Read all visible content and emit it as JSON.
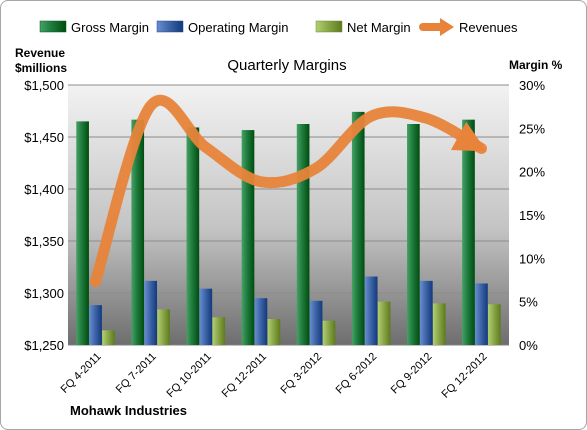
{
  "chart_data": {
    "type": "bar",
    "title": "Quarterly Margins",
    "footer": "Mohawk Industries",
    "left_axis_title": [
      "Revenue",
      "$millions"
    ],
    "right_axis_title": "Margin %",
    "categories": [
      "FQ 4-2011",
      "FQ 7-2011",
      "FQ 10-2011",
      "FQ 12-2011",
      "FQ 3-2012",
      "FQ 6-2012",
      "FQ 9-2012",
      "FQ 12-2012"
    ],
    "left_axis": {
      "min": 1250,
      "max": 1500,
      "ticks": [
        1250,
        1300,
        1350,
        1400,
        1450,
        1500
      ],
      "tick_labels": [
        "$1,250",
        "$1,300",
        "$1,350",
        "$1,400",
        "$1,450",
        "$1,500"
      ]
    },
    "right_axis": {
      "min": 0,
      "max": 30,
      "ticks": [
        0,
        5,
        10,
        15,
        20,
        25,
        30
      ],
      "tick_labels": [
        "0%",
        "5%",
        "10%",
        "15%",
        "20%",
        "25%",
        "30%"
      ]
    },
    "series": [
      {
        "name": "Gross Margin",
        "kind": "bar",
        "axis": "right",
        "color": "#1e7a3c",
        "values": [
          25.8,
          26.0,
          25.1,
          24.8,
          25.5,
          26.9,
          25.5,
          26.0
        ]
      },
      {
        "name": "Operating Margin",
        "kind": "bar",
        "axis": "right",
        "color": "#3f66a8",
        "values": [
          4.6,
          7.4,
          6.5,
          5.4,
          5.1,
          7.9,
          7.4,
          7.1
        ]
      },
      {
        "name": "Net Margin",
        "kind": "bar",
        "axis": "right",
        "color": "#8aa84a",
        "values": [
          1.7,
          4.1,
          3.2,
          3.0,
          2.8,
          5.0,
          4.8,
          4.7
        ]
      },
      {
        "name": "Revenues",
        "kind": "line",
        "axis": "left",
        "color": "#e8843a",
        "values": [
          1311,
          1480,
          1440,
          1407,
          1420,
          1470,
          1468,
          1439
        ]
      }
    ],
    "legend_position": "top",
    "grid": true
  }
}
